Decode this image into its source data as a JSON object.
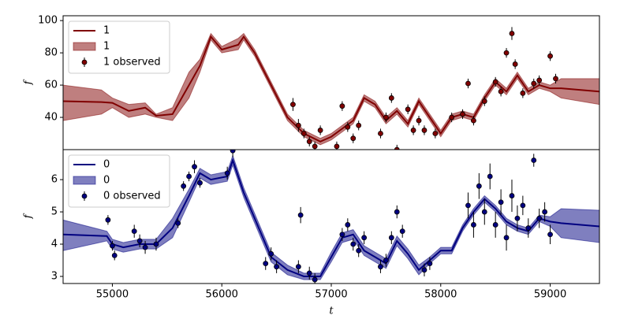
{
  "chart_data": [
    {
      "type": "band-line",
      "ylabel": "f",
      "x": [
        54550,
        54900,
        55000,
        55150,
        55300,
        55400,
        55550,
        55700,
        55800,
        55900,
        56000,
        56150,
        56200,
        56300,
        56450,
        56600,
        56750,
        56900,
        57000,
        57100,
        57200,
        57300,
        57400,
        57500,
        57600,
        57700,
        57800,
        57900,
        58000,
        58100,
        58200,
        58300,
        58400,
        58500,
        58600,
        58700,
        58800,
        58900,
        59000,
        59100,
        59450
      ],
      "series": [
        {
          "name": "1",
          "color": "#800000",
          "values": [
            50,
            49.5,
            49,
            44,
            46,
            41,
            42,
            60,
            72,
            90,
            82,
            85,
            90,
            80,
            60,
            40,
            30,
            25,
            28,
            33,
            38,
            52,
            48,
            38,
            44,
            36,
            50,
            40,
            30,
            40,
            42,
            40,
            52,
            62,
            56,
            66,
            56,
            60,
            58,
            58,
            56
          ]
        }
      ],
      "band": {
        "name": "1",
        "color": "#800000",
        "lower": [
          38,
          42,
          46,
          40,
          42,
          40,
          38,
          52,
          68,
          88,
          80,
          82,
          88,
          78,
          58,
          38,
          28,
          23,
          26,
          31,
          36,
          50,
          46,
          36,
          42,
          34,
          48,
          38,
          28,
          38,
          40,
          38,
          50,
          60,
          54,
          64,
          54,
          58,
          56,
          52,
          48
        ],
        "upper": [
          60,
          57,
          52,
          48,
          49,
          42,
          46,
          68,
          76,
          92,
          84,
          89,
          92,
          82,
          62,
          42,
          32,
          27,
          30,
          35,
          40,
          54,
          50,
          40,
          46,
          38,
          52,
          42,
          32,
          42,
          44,
          42,
          54,
          64,
          58,
          68,
          58,
          62,
          60,
          64,
          64
        ]
      },
      "observed": {
        "name": "1 observed",
        "color": "#800000",
        "ecolor": "#000000",
        "x": [
          56650,
          56700,
          56750,
          56800,
          56850,
          56900,
          57050,
          57100,
          57150,
          57200,
          57250,
          57450,
          57500,
          57550,
          57600,
          57700,
          57750,
          57800,
          57850,
          57950,
          58100,
          58200,
          58250,
          58300,
          58400,
          58500,
          58550,
          58600,
          58650,
          58680,
          58750,
          58850,
          58900,
          59000,
          59050
        ],
        "values": [
          48,
          35,
          30,
          25,
          22,
          32,
          22,
          47,
          34,
          27,
          35,
          30,
          40,
          52,
          20,
          45,
          32,
          38,
          32,
          30,
          40,
          42,
          61,
          38,
          50,
          62,
          56,
          80,
          92,
          73,
          55,
          61,
          63,
          78,
          64
        ],
        "errors": [
          4,
          4,
          3,
          3,
          3,
          3,
          3,
          3,
          3,
          3,
          3,
          3,
          3,
          3,
          3,
          3,
          3,
          3,
          3,
          3,
          3,
          3,
          3,
          3,
          3,
          3,
          3,
          3,
          4,
          3,
          3,
          3,
          3,
          3,
          3
        ]
      },
      "xlim": [
        54550,
        59450
      ],
      "ylim": [
        20,
        103
      ],
      "yticks": [
        40,
        60,
        80,
        100
      ],
      "legend": "upper left"
    },
    {
      "type": "band-line",
      "ylabel": "f",
      "xlabel": "t",
      "x": [
        54550,
        54950,
        55000,
        55100,
        55250,
        55400,
        55550,
        55700,
        55800,
        55900,
        56050,
        56100,
        56200,
        56350,
        56450,
        56600,
        56750,
        56900,
        57000,
        57100,
        57200,
        57300,
        57400,
        57500,
        57600,
        57700,
        57800,
        57900,
        58000,
        58100,
        58200,
        58300,
        58400,
        58500,
        58600,
        58700,
        58800,
        58900,
        59000,
        59100,
        59450
      ],
      "series": [
        {
          "name": "0",
          "color": "#000080",
          "values": [
            4.3,
            4.25,
            4.0,
            3.9,
            4.0,
            4.0,
            4.5,
            5.5,
            6.2,
            6.0,
            6.1,
            6.6,
            5.6,
            4.4,
            3.6,
            3.2,
            3.0,
            3.0,
            3.6,
            4.2,
            4.3,
            3.8,
            3.6,
            3.4,
            4.1,
            3.7,
            3.2,
            3.5,
            3.8,
            3.8,
            4.5,
            5.0,
            5.4,
            5.1,
            4.7,
            4.5,
            4.4,
            4.8,
            4.7,
            4.65,
            4.55
          ]
        }
      ],
      "band": {
        "name": "0",
        "color": "#000080",
        "lower": [
          3.8,
          4.1,
          3.85,
          3.75,
          3.85,
          3.85,
          4.2,
          5.3,
          6.05,
          5.85,
          5.95,
          6.45,
          5.45,
          4.25,
          3.45,
          3.05,
          2.9,
          2.9,
          3.45,
          4.05,
          4.15,
          3.65,
          3.45,
          3.25,
          3.95,
          3.55,
          3.05,
          3.4,
          3.7,
          3.7,
          4.4,
          4.9,
          5.3,
          5.0,
          4.6,
          4.4,
          4.3,
          4.7,
          4.55,
          4.2,
          4.05
        ],
        "upper": [
          4.75,
          4.4,
          4.15,
          4.05,
          4.15,
          4.15,
          4.8,
          5.7,
          6.35,
          6.15,
          6.25,
          6.75,
          5.75,
          4.55,
          3.75,
          3.35,
          3.1,
          3.1,
          3.75,
          4.35,
          4.45,
          3.95,
          3.75,
          3.55,
          4.25,
          3.85,
          3.35,
          3.6,
          3.9,
          3.9,
          4.6,
          5.1,
          5.5,
          5.2,
          4.8,
          4.6,
          4.5,
          4.9,
          4.85,
          5.1,
          5.05
        ]
      },
      "observed": {
        "name": "0 observed",
        "color": "#000080",
        "ecolor": "#000000",
        "x": [
          54960,
          55000,
          55020,
          55200,
          55250,
          55300,
          55400,
          55600,
          55650,
          55700,
          55750,
          55800,
          56050,
          56100,
          56400,
          56450,
          56500,
          56700,
          56720,
          56800,
          56850,
          57100,
          57150,
          57200,
          57250,
          57300,
          57450,
          57500,
          57550,
          57600,
          57650,
          57850,
          57900,
          58250,
          58300,
          58350,
          58400,
          58450,
          58500,
          58550,
          58600,
          58650,
          58700,
          58750,
          58800,
          58850,
          58900,
          58950,
          59000
        ],
        "values": [
          4.75,
          3.95,
          3.65,
          4.4,
          4.1,
          3.9,
          4.0,
          4.65,
          5.8,
          6.1,
          6.4,
          5.9,
          6.2,
          6.9,
          3.4,
          3.7,
          3.3,
          3.3,
          4.9,
          3.1,
          2.9,
          4.3,
          4.6,
          4.0,
          3.8,
          4.2,
          3.3,
          3.5,
          4.2,
          5.0,
          4.4,
          3.2,
          3.4,
          5.2,
          4.6,
          5.8,
          5.0,
          6.1,
          4.6,
          5.3,
          4.2,
          5.5,
          4.8,
          5.2,
          4.5,
          6.6,
          4.8,
          5.0,
          4.3
        ],
        "errors": [
          0.15,
          0.15,
          0.15,
          0.2,
          0.2,
          0.2,
          0.2,
          0.15,
          0.15,
          0.15,
          0.2,
          0.15,
          0.2,
          0.2,
          0.2,
          0.2,
          0.2,
          0.2,
          0.25,
          0.2,
          0.2,
          0.2,
          0.2,
          0.2,
          0.2,
          0.2,
          0.2,
          0.2,
          0.2,
          0.2,
          0.2,
          0.2,
          0.2,
          0.4,
          0.4,
          0.4,
          0.4,
          0.4,
          0.4,
          0.4,
          0.4,
          0.5,
          0.4,
          0.3,
          0.3,
          0.2,
          0.3,
          0.3,
          0.3
        ]
      },
      "xlim": [
        54550,
        59450
      ],
      "ylim": [
        2.78,
        6.93
      ],
      "xticks": [
        55000,
        56000,
        57000,
        58000,
        59000
      ],
      "yticks": [
        3,
        4,
        5,
        6
      ],
      "legend": "upper left"
    }
  ]
}
